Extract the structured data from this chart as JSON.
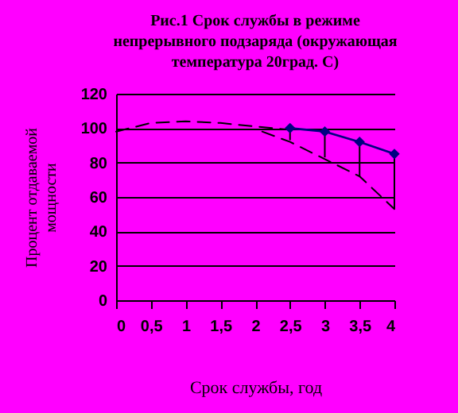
{
  "chart_data": {
    "type": "line",
    "title": "Рис.1 Срок службы в режиме непрерывного подзаряда (окружающая температура 20град. С)",
    "xlabel": "Срок службы, год",
    "ylabel": "Процент отдаваемой мощности",
    "xlim": [
      0,
      4
    ],
    "xticks": [
      0,
      {
        "value": 0.5,
        "label": "0,5"
      },
      1,
      {
        "value": 1.5,
        "label": "1,5"
      },
      2,
      {
        "value": 2.5,
        "label": "2,5"
      },
      3,
      {
        "value": 3.5,
        "label": "3,5"
      },
      4
    ],
    "ylim": [
      0,
      120
    ],
    "yticks": [
      0,
      20,
      40,
      60,
      80,
      100,
      120
    ],
    "grid": "y",
    "series": [
      {
        "color": "#000000",
        "line_style": "dashed",
        "marker": "none",
        "x": [
          0,
          0.5,
          1,
          1.5,
          2,
          2.5
        ],
        "values": [
          98,
          103,
          104,
          103,
          101,
          99
        ]
      },
      {
        "color": "#000000",
        "line_style": "dashed",
        "marker": "none",
        "x": [
          2.1,
          2.5,
          3,
          3.5,
          4
        ],
        "values": [
          98,
          92,
          82,
          72,
          53
        ]
      },
      {
        "color": "#000080",
        "line_style": "solid",
        "marker": "diamond",
        "x": [
          2.5,
          3,
          3.5,
          4
        ],
        "values": [
          100,
          98,
          92,
          85
        ],
        "errors": [
          [
            93,
            100
          ],
          [
            83,
            98
          ],
          [
            72,
            92
          ],
          [
            53,
            85
          ]
        ]
      }
    ]
  }
}
